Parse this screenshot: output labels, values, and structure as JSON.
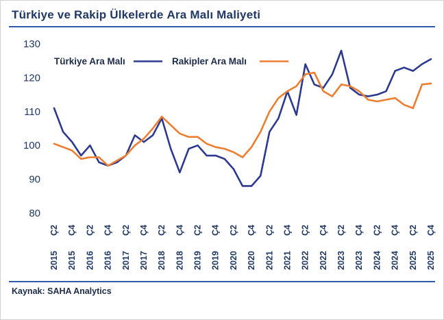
{
  "title": {
    "prefix": "Türkiye ve Rakip Ülkelerde ",
    "bold": "Ara Malı",
    "suffix": " Maliyeti"
  },
  "source": "Kaynak: SAHA Analytics",
  "colors": {
    "turkiye_line": "#2c398f",
    "rakipler_line": "#ed7d31",
    "accent_rule": "#2f5aa8",
    "axis_text": "#1f3864"
  },
  "legend": [
    {
      "label": "Türkiye Ara Malı"
    },
    {
      "label": "Rakipler Ara Malı"
    }
  ],
  "chart_data": {
    "type": "line",
    "title": "Türkiye ve Rakip Ülkelerde Ara Malı Maliyeti",
    "ylim": [
      80,
      130
    ],
    "yticks": [
      130,
      120,
      110,
      100,
      90,
      80
    ],
    "grid": false,
    "legend_position": "top-left-inside",
    "x_note": "quarterly points Ç2 2015 – Ç4 2025; ticks labeled every second quarter",
    "tick_labels": [
      {
        "q": "Ç2",
        "year": "2015"
      },
      {
        "q": "Ç4",
        "year": "2015"
      },
      {
        "q": "Ç2",
        "year": "2016"
      },
      {
        "q": "Ç4",
        "year": "2016"
      },
      {
        "q": "Ç2",
        "year": "2017"
      },
      {
        "q": "Ç4",
        "year": "2017"
      },
      {
        "q": "Ç2",
        "year": "2018"
      },
      {
        "q": "Ç4",
        "year": "2018"
      },
      {
        "q": "Ç2",
        "year": "2019"
      },
      {
        "q": "Ç4",
        "year": "2019"
      },
      {
        "q": "Ç2",
        "year": "2020"
      },
      {
        "q": "Ç4",
        "year": "2020"
      },
      {
        "q": "Ç2",
        "year": "2021"
      },
      {
        "q": "Ç4",
        "year": "2021"
      },
      {
        "q": "Ç2",
        "year": "2022"
      },
      {
        "q": "Ç4",
        "year": "2022"
      },
      {
        "q": "Ç2",
        "year": "2023"
      },
      {
        "q": "Ç4",
        "year": "2023"
      },
      {
        "q": "Ç2",
        "year": "2024"
      },
      {
        "q": "Ç4",
        "year": "2024"
      },
      {
        "q": "Ç2",
        "year": "2025"
      },
      {
        "q": "Ç4",
        "year": "2025"
      }
    ],
    "series": [
      {
        "key": "turkiye",
        "name": "Türkiye Ara Malı",
        "color": "#2c398f",
        "values": [
          111,
          104,
          101,
          97,
          100,
          95,
          94,
          95,
          97,
          103,
          101,
          103,
          108,
          99,
          92,
          99,
          100,
          97,
          97,
          96,
          93,
          88,
          88,
          91,
          104,
          108,
          116,
          109,
          124,
          118,
          117,
          121,
          128,
          117,
          115,
          114.5,
          115,
          116,
          122,
          123,
          122,
          124,
          125.5
        ]
      },
      {
        "key": "rakipler",
        "name": "Rakipler Ara Malı",
        "color": "#ed7d31",
        "values": [
          100.5,
          99.5,
          98.5,
          96,
          96.5,
          96.5,
          94,
          95.5,
          97,
          100,
          102,
          105,
          108.5,
          106,
          103.5,
          102.5,
          102.5,
          100.5,
          99.5,
          99,
          98,
          96.5,
          99.5,
          104,
          110,
          114,
          116,
          117.5,
          121,
          121.5,
          116,
          114.5,
          118,
          117.5,
          116,
          113.5,
          113,
          113.5,
          114,
          112,
          111,
          118,
          118.3
        ]
      }
    ]
  }
}
